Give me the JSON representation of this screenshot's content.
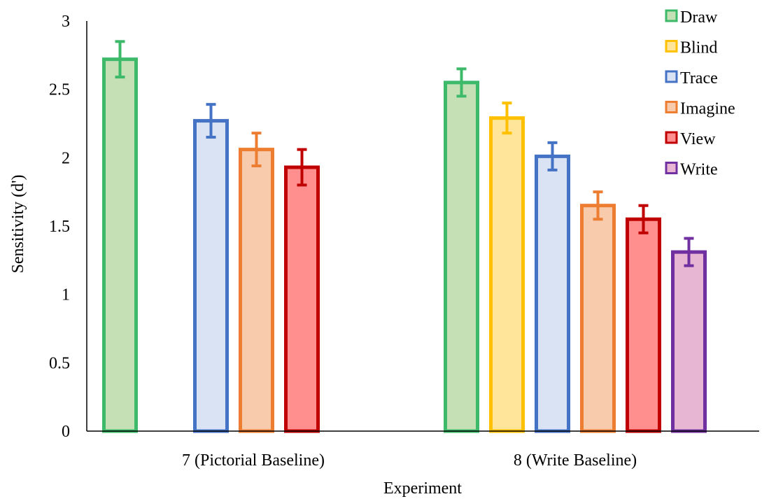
{
  "chart_data": {
    "type": "bar",
    "title": "",
    "xlabel": "Experiment",
    "ylabel": "Sensitivity (d')",
    "ylim": [
      0,
      3
    ],
    "yticks": [
      {
        "value": 0,
        "label": "0"
      },
      {
        "value": 0.5,
        "label": "0.5"
      },
      {
        "value": 1,
        "label": "1"
      },
      {
        "value": 1.5,
        "label": "1.5"
      },
      {
        "value": 2,
        "label": "2"
      },
      {
        "value": 2.5,
        "label": "2.5"
      },
      {
        "value": 3,
        "label": "3"
      }
    ],
    "grid": false,
    "legend_position": "top-right",
    "categories": [
      "7 (Pictorial Baseline)",
      "8 (Write Baseline)"
    ],
    "series": [
      {
        "name": "Draw",
        "edge": "#3db96a",
        "fill": "#c5e0b4",
        "values": [
          2.72,
          2.55
        ],
        "errors": [
          0.13,
          0.1
        ]
      },
      {
        "name": "Blind",
        "edge": "#ffc000",
        "fill": "#ffe599",
        "values": [
          null,
          2.29
        ],
        "errors": [
          null,
          0.11
        ]
      },
      {
        "name": "Trace",
        "edge": "#4472c4",
        "fill": "#dae3f3",
        "values": [
          2.27,
          2.01
        ],
        "errors": [
          0.12,
          0.1
        ]
      },
      {
        "name": "Imagine",
        "edge": "#ed7d31",
        "fill": "#f8cbad",
        "values": [
          2.06,
          1.65
        ],
        "errors": [
          0.12,
          0.1
        ]
      },
      {
        "name": "View",
        "edge": "#c00000",
        "fill": "#ff8f8f",
        "values": [
          1.93,
          1.55
        ],
        "errors": [
          0.13,
          0.1
        ]
      },
      {
        "name": "Write",
        "edge": "#7030a0",
        "fill": "#e6b6d2",
        "values": [
          null,
          1.31
        ],
        "errors": [
          null,
          0.1
        ]
      }
    ]
  }
}
